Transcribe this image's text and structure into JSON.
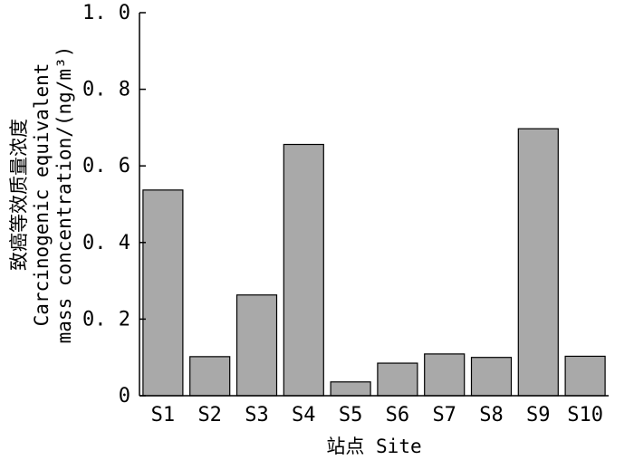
{
  "chart_data": {
    "type": "bar",
    "categories": [
      "S1",
      "S2",
      "S3",
      "S4",
      "S5",
      "S6",
      "S7",
      "S8",
      "S9",
      "S10"
    ],
    "values": [
      0.537,
      0.102,
      0.263,
      0.656,
      0.036,
      0.085,
      0.109,
      0.1,
      0.697,
      0.103
    ],
    "ylim": [
      0,
      1.0
    ],
    "yticks": [
      0,
      0.2,
      0.4,
      0.6,
      0.8,
      1.0
    ],
    "ytick_labels": [
      "0",
      "0. 2",
      "0. 4",
      "0. 6",
      "0. 8",
      "1. 0"
    ],
    "xlabel": "站点 Site",
    "ylabel_lines": [
      "致癌等效质量浓度",
      "Carcinogenic equivalent",
      "mass concentration/(ng/m³)"
    ],
    "bar_color": "#a9a9a9",
    "grid": false,
    "legend": "none"
  }
}
